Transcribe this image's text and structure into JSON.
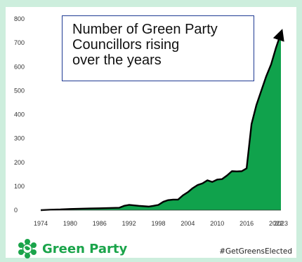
{
  "title_lines": [
    "Number of Green Party",
    "Councillors rising",
    "over the years"
  ],
  "brand": {
    "name": "Green Party",
    "hashtag": "#GetGreensElected",
    "logo_icon": "earth-flower-logo-icon"
  },
  "colors": {
    "background": "#cdeedd",
    "fill": "#10a24c",
    "line": "#000000",
    "brand_green": "#1aa44a"
  },
  "chart_data": {
    "type": "area",
    "title": "Number of Green Party Councillors rising over the years",
    "xlabel": "",
    "ylabel": "",
    "xlim": [
      1974,
      2023
    ],
    "ylim": [
      0,
      800
    ],
    "x_ticks": [
      "1974",
      "1980",
      "1986",
      "1992",
      "1998",
      "2004",
      "2010",
      "2016",
      "2022",
      "2023"
    ],
    "y_ticks": [
      "0",
      "100",
      "200",
      "300",
      "400",
      "500",
      "600",
      "700",
      "800"
    ],
    "grid": false,
    "legend": "none",
    "series": [
      {
        "x": [
          1974,
          1976,
          1978,
          1980,
          1982,
          1984,
          1986,
          1988,
          1990,
          1991,
          1992,
          1994,
          1996,
          1997,
          1998,
          1999,
          2000,
          2001,
          2002,
          2003,
          2004,
          2005,
          2006,
          2007,
          2008,
          2009,
          2010,
          2011,
          2012,
          2013,
          2014,
          2015,
          2016,
          2017,
          2018,
          2019,
          2020,
          2021,
          2022,
          2023
        ],
        "values": [
          0,
          2,
          3,
          5,
          6,
          7,
          8,
          9,
          10,
          18,
          22,
          18,
          15,
          18,
          22,
          35,
          42,
          44,
          44,
          62,
          75,
          92,
          105,
          112,
          125,
          118,
          128,
          130,
          145,
          163,
          162,
          163,
          175,
          360,
          440,
          500,
          560,
          610,
          680,
          740
        ]
      }
    ]
  }
}
